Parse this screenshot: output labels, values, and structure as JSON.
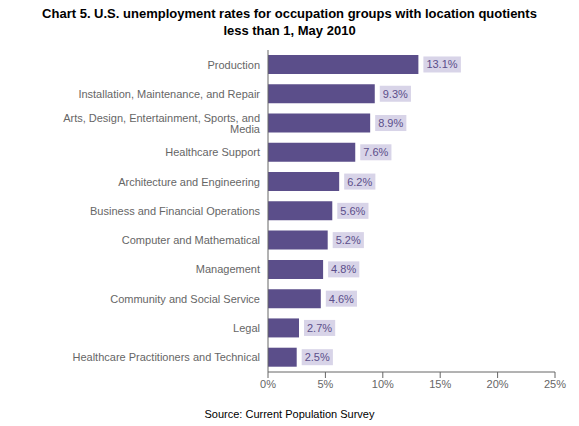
{
  "chart_data": {
    "type": "bar",
    "orientation": "horizontal",
    "title": "Chart 5. U.S. unemployment rates for occupation groups with location quotients\nless than 1, May 2010",
    "categories": [
      "Healthcare Practitioners and Technical",
      "Legal",
      "Community and Social Service",
      "Management",
      "Computer and Mathematical",
      "Business and Financial Operations",
      "Architecture and Engineering",
      "Healthcare Support",
      "Arts, Design, Entertainment, Sports, and Media",
      "Installation, Maintenance, and Repair",
      "Production"
    ],
    "values": [
      2.5,
      2.7,
      4.6,
      4.8,
      5.2,
      5.6,
      6.2,
      7.6,
      8.9,
      9.3,
      13.1
    ],
    "value_labels": [
      "2.5%",
      "2.7%",
      "4.6%",
      "4.8%",
      "5.2%",
      "5.6%",
      "6.2%",
      "7.6%",
      "8.9%",
      "9.3%",
      "13.1%"
    ],
    "data_labels": true,
    "color": "#5b4e8a",
    "xlim": [
      0,
      25
    ],
    "xticks": [
      {
        "value": 0,
        "label": "0%"
      },
      {
        "value": 5,
        "label": "5%"
      },
      {
        "value": 10,
        "label": "10%"
      },
      {
        "value": 15,
        "label": "15%"
      },
      {
        "value": 20,
        "label": "20%"
      },
      {
        "value": 25,
        "label": "25%"
      }
    ],
    "grid": false,
    "annotations": [
      "Source: Current Population Survey"
    ]
  }
}
